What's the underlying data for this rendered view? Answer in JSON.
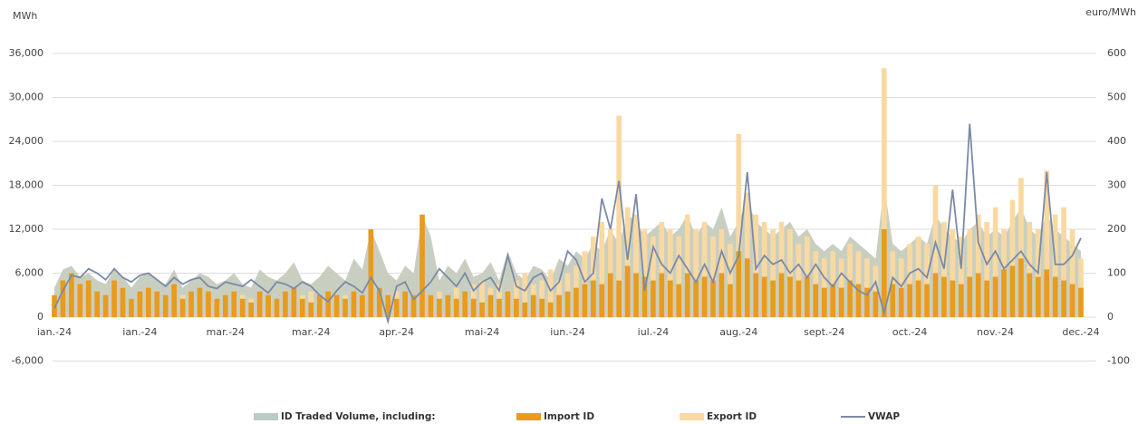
{
  "chart_data": {
    "type": "bar",
    "y_label": "MWh",
    "y2_label": "euro/MWh",
    "categories": [
      "ian.-24",
      null,
      null,
      null,
      null,
      null,
      null,
      null,
      null,
      null,
      "ian.-24",
      null,
      null,
      null,
      null,
      null,
      null,
      null,
      null,
      null,
      "mar.-24",
      null,
      null,
      null,
      null,
      null,
      null,
      null,
      null,
      null,
      "mar.-24",
      null,
      null,
      null,
      null,
      null,
      null,
      null,
      null,
      null,
      "apr.-24",
      null,
      null,
      null,
      null,
      null,
      null,
      null,
      null,
      null,
      "mai-24",
      null,
      null,
      null,
      null,
      null,
      null,
      null,
      null,
      null,
      "iun.-24",
      null,
      null,
      null,
      null,
      null,
      null,
      null,
      null,
      null,
      "iul.-24",
      null,
      null,
      null,
      null,
      null,
      null,
      null,
      null,
      null,
      "aug.-24",
      null,
      null,
      null,
      null,
      null,
      null,
      null,
      null,
      null,
      "sept.-24",
      null,
      null,
      null,
      null,
      null,
      null,
      null,
      null,
      null,
      "oct.-24",
      null,
      null,
      null,
      null,
      null,
      null,
      null,
      null,
      null,
      "nov.-24",
      null,
      null,
      null,
      null,
      null,
      null,
      null,
      null,
      null,
      "dec.-24"
    ],
    "series": [
      {
        "name": "ID Traded Volume, including:",
        "type": "area",
        "color": "#c9cfc0",
        "legend_color": "#b9cbc6",
        "values": [
          4000,
          6500,
          7000,
          5500,
          6000,
          5000,
          4500,
          6500,
          5500,
          4000,
          5500,
          6000,
          5000,
          4500,
          6500,
          4000,
          5000,
          6000,
          5500,
          4500,
          5000,
          6000,
          4500,
          4000,
          6500,
          5500,
          5000,
          6000,
          7500,
          5000,
          4500,
          5500,
          7000,
          6000,
          5000,
          8000,
          6500,
          12000,
          9000,
          6000,
          5000,
          7000,
          6000,
          14000,
          11000,
          5000,
          7000,
          6000,
          8000,
          5500,
          6000,
          7500,
          5000,
          9000,
          6000,
          5000,
          7000,
          6500,
          5000,
          8000,
          7000,
          9000,
          8000,
          10000,
          9000,
          12000,
          10000,
          14000,
          13000,
          11000,
          12000,
          13000,
          11000,
          12000,
          14000,
          11000,
          13000,
          12000,
          15000,
          11000,
          13000,
          16000,
          13000,
          12000,
          11000,
          12000,
          13000,
          11000,
          12000,
          10000,
          9000,
          10000,
          9000,
          11000,
          10000,
          9000,
          8000,
          18000,
          10000,
          9000,
          10000,
          11000,
          10000,
          14000,
          12000,
          11000,
          10000,
          12000,
          13000,
          11000,
          12000,
          11000,
          13000,
          15000,
          12000,
          11000,
          14000,
          12000,
          11000,
          10000,
          9000
        ]
      },
      {
        "name": "Export ID",
        "type": "bar",
        "color": "#f9d9a2",
        "values": [
          1000,
          1500,
          1000,
          2000,
          1500,
          1000,
          2000,
          1500,
          1000,
          2500,
          2000,
          1500,
          1000,
          2000,
          1500,
          3000,
          2000,
          1500,
          1000,
          2500,
          2000,
          1500,
          3000,
          2500,
          1500,
          2000,
          2500,
          1500,
          1000,
          3000,
          3500,
          2500,
          2000,
          2500,
          3000,
          2000,
          2500,
          4000,
          2000,
          3000,
          3500,
          2500,
          3000,
          5000,
          3000,
          3500,
          2500,
          4000,
          3000,
          4500,
          5000,
          4000,
          4500,
          3500,
          5000,
          6000,
          4500,
          5000,
          6500,
          5000,
          6000,
          7000,
          9000,
          11000,
          13000,
          12000,
          27500,
          15000,
          14000,
          12000,
          11000,
          13000,
          12000,
          11000,
          14000,
          12000,
          13000,
          11000,
          12000,
          10000,
          25000,
          17000,
          14000,
          13000,
          12000,
          13000,
          12000,
          10000,
          11000,
          9000,
          8000,
          9000,
          8000,
          10000,
          9000,
          8000,
          7000,
          34000,
          9000,
          8000,
          10000,
          11000,
          10000,
          18000,
          13000,
          12000,
          11000,
          12000,
          14000,
          13000,
          15000,
          12000,
          16000,
          19000,
          13000,
          12000,
          20000,
          14000,
          15000,
          12000,
          8000
        ]
      },
      {
        "name": "Import ID",
        "type": "bar",
        "color": "#e89b1c",
        "values": [
          3000,
          5000,
          6000,
          4500,
          5000,
          3500,
          3000,
          5000,
          4000,
          2500,
          3500,
          4000,
          3500,
          3000,
          4500,
          2500,
          3500,
          4000,
          3500,
          2500,
          3000,
          3500,
          2500,
          2000,
          3500,
          3000,
          2500,
          3500,
          4000,
          2500,
          2000,
          3000,
          3500,
          3000,
          2500,
          3500,
          3000,
          12000,
          4000,
          3000,
          2500,
          3500,
          3000,
          14000,
          3000,
          2500,
          3000,
          2500,
          3500,
          2500,
          2000,
          3000,
          2500,
          3500,
          2500,
          2000,
          3000,
          2500,
          2000,
          3000,
          3500,
          4000,
          4500,
          5000,
          4500,
          6000,
          5000,
          7000,
          6000,
          5500,
          5000,
          6000,
          5000,
          4500,
          6000,
          5000,
          5500,
          5000,
          6000,
          4500,
          9000,
          8000,
          6000,
          5500,
          5000,
          6000,
          5500,
          5000,
          5500,
          4500,
          4000,
          4500,
          4000,
          5000,
          4500,
          4000,
          3500,
          12000,
          4500,
          4000,
          4500,
          5000,
          4500,
          6000,
          5500,
          5000,
          4500,
          5500,
          6000,
          5000,
          5500,
          6500,
          7000,
          8000,
          6000,
          5500,
          6500,
          5500,
          5000,
          4500,
          4000
        ]
      },
      {
        "name": "VWAP",
        "type": "line",
        "axis": "y2",
        "color": "#7b8aa6",
        "values": [
          20,
          60,
          95,
          90,
          110,
          100,
          85,
          110,
          90,
          80,
          95,
          100,
          85,
          70,
          90,
          75,
          85,
          90,
          70,
          65,
          80,
          75,
          70,
          85,
          70,
          55,
          80,
          75,
          65,
          80,
          70,
          50,
          35,
          60,
          80,
          70,
          55,
          90,
          60,
          -10,
          70,
          80,
          40,
          60,
          80,
          110,
          90,
          70,
          100,
          60,
          80,
          90,
          60,
          140,
          70,
          60,
          90,
          100,
          60,
          80,
          150,
          130,
          80,
          100,
          270,
          200,
          310,
          130,
          280,
          60,
          160,
          120,
          100,
          140,
          110,
          80,
          120,
          80,
          150,
          100,
          140,
          330,
          110,
          140,
          120,
          130,
          100,
          120,
          90,
          120,
          90,
          70,
          100,
          80,
          60,
          50,
          80,
          10,
          90,
          70,
          100,
          110,
          90,
          170,
          110,
          290,
          110,
          440,
          170,
          120,
          150,
          110,
          130,
          150,
          120,
          100,
          330,
          120,
          120,
          140,
          180
        ]
      }
    ],
    "ylim": [
      -6000,
      36000
    ],
    "yticks": [
      {
        "value": -6000,
        "label": "-6,000"
      },
      0,
      {
        "value": 6000,
        "label": "6,000"
      },
      {
        "value": 12000,
        "label": "12,000"
      },
      {
        "value": 18000,
        "label": "18,000"
      },
      {
        "value": 24000,
        "label": "24,000"
      },
      {
        "value": 30000,
        "label": "30,000"
      },
      {
        "value": 36000,
        "label": "36,000"
      }
    ],
    "y2lim": [
      -100,
      600
    ],
    "y2ticks": [
      -100,
      0,
      100,
      200,
      300,
      400,
      500,
      600
    ],
    "grid": true
  }
}
